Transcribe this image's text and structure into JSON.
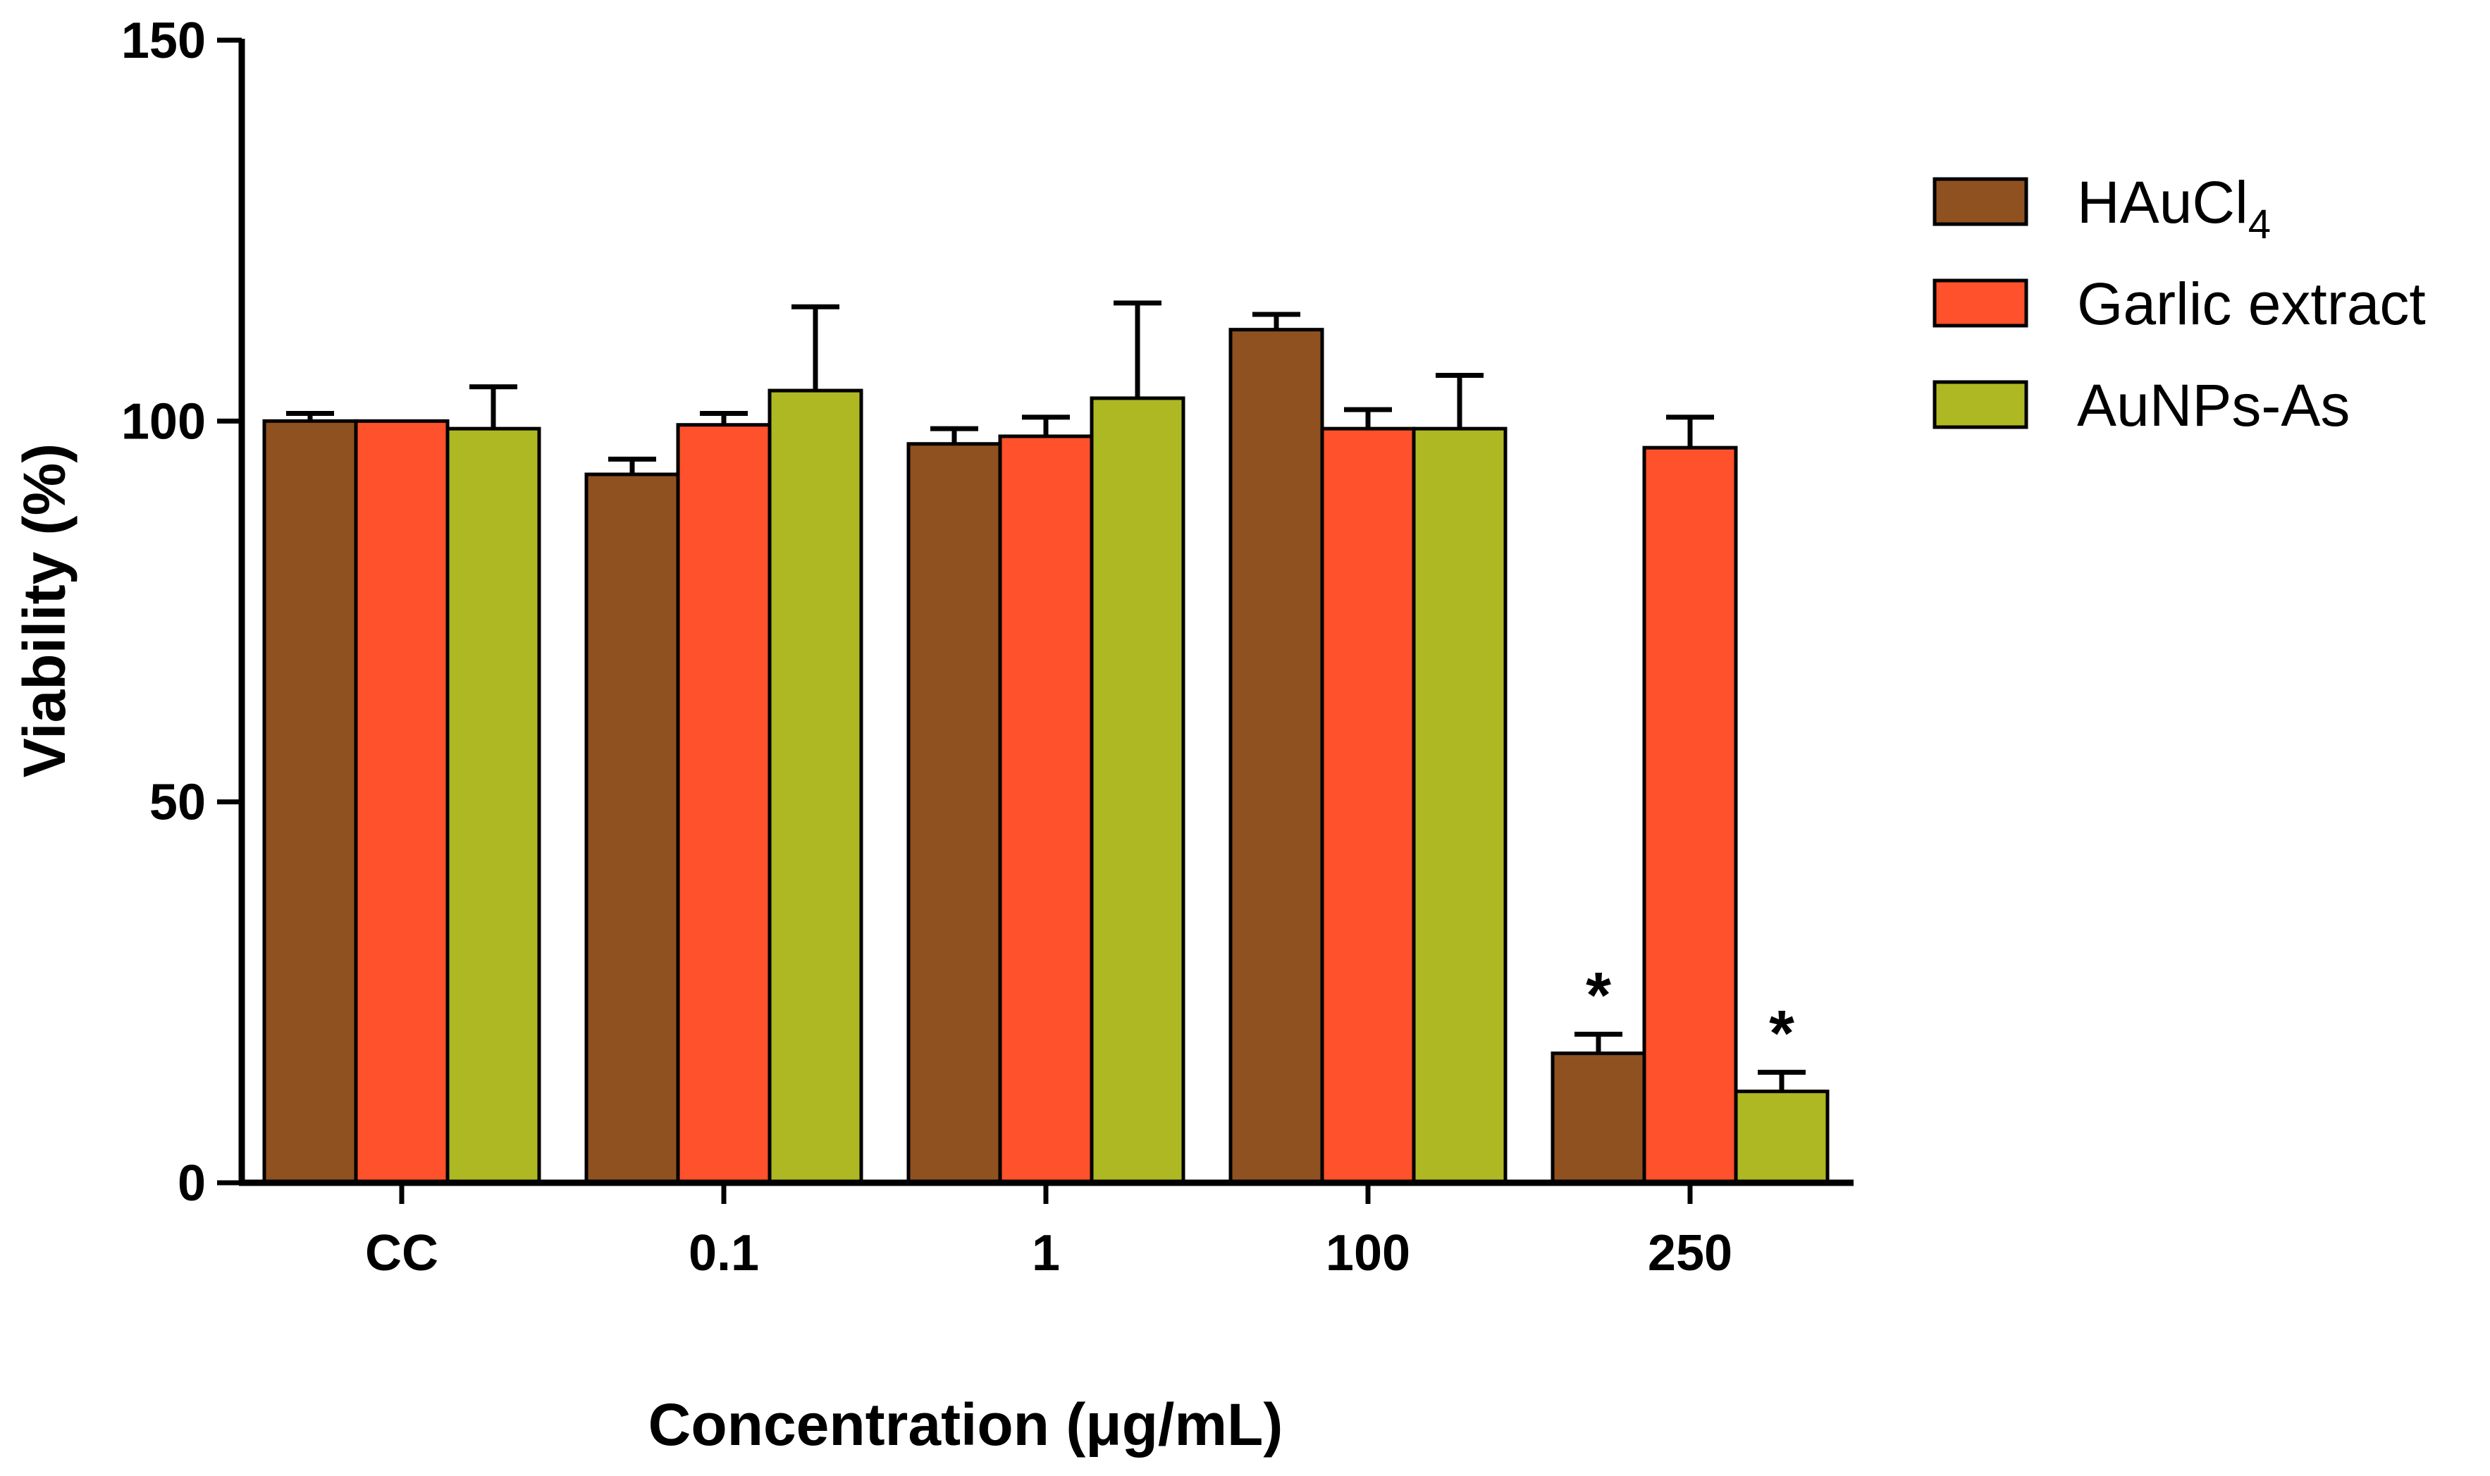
{
  "chart_data": {
    "type": "bar",
    "title": "",
    "xlabel": "Concentration (μg/mL)",
    "ylabel": "Viability (%)",
    "ylim": [
      0,
      150
    ],
    "yticks": [
      "0",
      "50",
      "100",
      "150"
    ],
    "categories": [
      "CC",
      "0.1",
      "1",
      "100",
      "250"
    ],
    "series": [
      {
        "name": "HAuCl",
        "name_sub": "4",
        "color": "#8f5120",
        "values": [
          100,
          93,
          97,
          112,
          17
        ],
        "errors": [
          1,
          2,
          2,
          2,
          2.5
        ]
      },
      {
        "name": "Garlic extract",
        "name_sub": "",
        "color": "#ff512b",
        "values": [
          100,
          99.5,
          98,
          99,
          96.5
        ],
        "errors": [
          0,
          1.5,
          2.5,
          2.5,
          4
        ]
      },
      {
        "name": "AuNPs-As",
        "name_sub": "",
        "color": "#aeb822",
        "values": [
          99,
          104,
          103,
          99,
          12
        ],
        "errors": [
          5.5,
          11,
          12.5,
          7,
          2.5
        ]
      }
    ],
    "annotations": [
      {
        "category": "250",
        "series": "HAuCl",
        "text": "*"
      },
      {
        "category": "250",
        "series": "AuNPs-As",
        "text": "*"
      }
    ],
    "legend_position": "right"
  }
}
